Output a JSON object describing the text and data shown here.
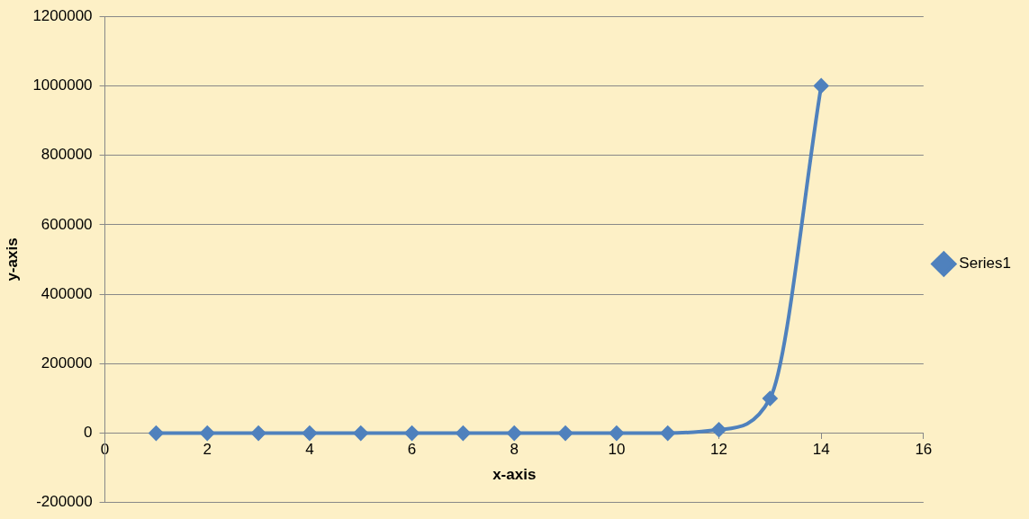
{
  "chart_data": {
    "type": "line",
    "xlabel": "x-axis",
    "ylabel": "y-axis",
    "x": [
      1,
      2,
      3,
      4,
      5,
      6,
      7,
      8,
      9,
      10,
      11,
      12,
      13,
      14
    ],
    "series": [
      {
        "name": "Series1",
        "color": "#4f81bd",
        "values": [
          0,
          0,
          0,
          0,
          0,
          0,
          0,
          0,
          0,
          0,
          0,
          10000,
          100000,
          1000000
        ]
      }
    ],
    "xlim": [
      0,
      16
    ],
    "xticks": [
      0,
      2,
      4,
      6,
      8,
      10,
      12,
      14,
      16
    ],
    "ylim": [
      -200000,
      1200000
    ],
    "yticks": [
      -200000,
      0,
      200000,
      400000,
      600000,
      800000,
      1000000,
      1200000
    ],
    "grid": "y",
    "legend": "right",
    "marker": "diamond",
    "line_style": "solid"
  }
}
